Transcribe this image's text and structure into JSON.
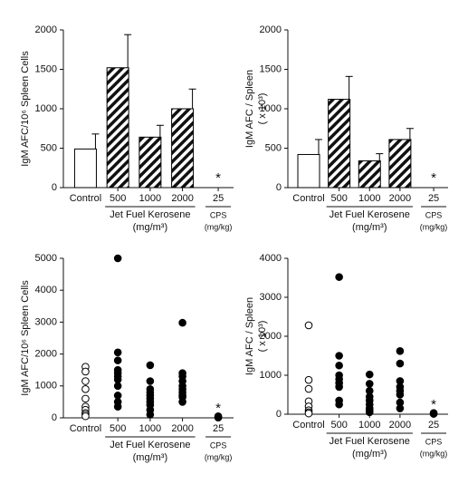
{
  "chart_data": [
    {
      "type": "bar",
      "ylabel": [
        "IgM AFC/10⁶ Spleen Cells"
      ],
      "categories": [
        "Control",
        "500",
        "1000",
        "2000",
        "25"
      ],
      "values": [
        490,
        1520,
        640,
        1000,
        0
      ],
      "errors": [
        190,
        420,
        150,
        250,
        null
      ],
      "hatched": [
        false,
        true,
        true,
        true,
        true
      ],
      "color": "#000000",
      "ylim": [
        0,
        2000
      ],
      "yticks": [
        0,
        500,
        1000,
        1500,
        2000
      ],
      "groups": [
        {
          "label": "Jet Fuel Kerosene",
          "unit": "(mg/m³)"
        },
        {
          "label": "CPS",
          "unit": "(mg/kg)"
        }
      ],
      "annotation": "*"
    },
    {
      "type": "bar",
      "ylabel": [
        "IgM AFC / Spleen",
        "( x 10³)"
      ],
      "categories": [
        "Control",
        "500",
        "1000",
        "2000",
        "25"
      ],
      "values": [
        420,
        1120,
        340,
        610,
        0
      ],
      "errors": [
        190,
        290,
        90,
        140,
        null
      ],
      "hatched": [
        false,
        true,
        true,
        true,
        true
      ],
      "color": "#000000",
      "ylim": [
        0,
        2000
      ],
      "yticks": [
        0,
        500,
        1000,
        1500,
        2000
      ],
      "groups": [
        {
          "label": "Jet Fuel Kerosene",
          "unit": "(mg/m³)"
        },
        {
          "label": "CPS",
          "unit": "(mg/kg)"
        }
      ],
      "annotation": "*"
    },
    {
      "type": "scatter",
      "ylabel": [
        "IgM AFC/10⁶ Spleen Cells"
      ],
      "categories": [
        "Control",
        "500",
        "1000",
        "2000",
        "25"
      ],
      "values": [
        [
          1600,
          1450,
          1150,
          900,
          600,
          350,
          250,
          150,
          100,
          50
        ],
        [
          5000,
          2050,
          1800,
          1500,
          1400,
          1300,
          1200,
          1000,
          700,
          500,
          350
        ],
        [
          1650,
          1150,
          900,
          800,
          700,
          600,
          500,
          400,
          250,
          100
        ],
        [
          2980,
          1400,
          1300,
          1150,
          1000,
          900,
          800,
          700,
          650,
          500
        ],
        [
          50,
          20,
          10
        ]
      ],
      "open": [
        true,
        false,
        false,
        false,
        false
      ],
      "color": "#000000",
      "ylim": [
        0,
        5000
      ],
      "yticks": [
        0,
        1000,
        2000,
        3000,
        4000,
        5000
      ],
      "groups": [
        {
          "label": "Jet Fuel Kerosene",
          "unit": "(mg/m³)"
        },
        {
          "label": "CPS",
          "unit": "(mg/kg)"
        }
      ],
      "annotation": "*"
    },
    {
      "type": "scatter",
      "ylabel": [
        "IgM AFC / Spleen",
        "( x 10³)"
      ],
      "categories": [
        "Control",
        "500",
        "1000",
        "2000",
        "25"
      ],
      "values": [
        [
          2280,
          880,
          650,
          330,
          200,
          100,
          50,
          20
        ],
        [
          3520,
          1500,
          1250,
          1000,
          900,
          800,
          700,
          350,
          250
        ],
        [
          1020,
          780,
          600,
          450,
          350,
          250,
          150,
          100,
          50
        ],
        [
          1620,
          1300,
          850,
          700,
          600,
          500,
          300,
          150
        ],
        [
          30,
          10
        ]
      ],
      "open": [
        true,
        false,
        false,
        false,
        false
      ],
      "color": "#000000",
      "ylim": [
        0,
        4000
      ],
      "yticks": [
        0,
        1000,
        2000,
        3000,
        4000
      ],
      "groups": [
        {
          "label": "Jet Fuel Kerosene",
          "unit": "(mg/m³)"
        },
        {
          "label": "CPS",
          "unit": "(mg/kg)"
        }
      ],
      "annotation": "*"
    }
  ]
}
